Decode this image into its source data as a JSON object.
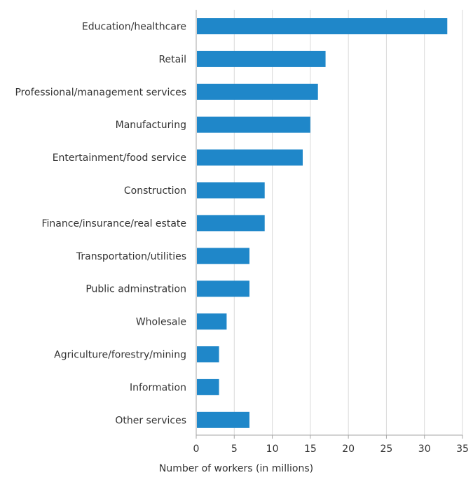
{
  "chart_data": {
    "type": "bar",
    "orientation": "horizontal",
    "title": "",
    "xlabel": "Number of workers (in millions)",
    "ylabel": "",
    "categories": [
      "Education/healthcare",
      "Retail",
      "Professional/management services",
      "Manufacturing",
      "Entertainment/food service",
      "Construction",
      "Finance/insurance/real estate",
      "Transportation/utilities",
      "Public adminstration",
      "Wholesale",
      "Agriculture/forestry/mining",
      "Information",
      "Other services"
    ],
    "values": [
      33,
      17,
      16,
      15,
      14,
      9,
      9,
      7,
      7,
      4,
      3,
      3,
      7
    ],
    "xlim": [
      0,
      35
    ],
    "xticks": [
      0,
      5,
      10,
      15,
      20,
      25,
      30,
      35
    ],
    "grid": true,
    "bar_color": "#1f87c9",
    "grid_color": "#d9d9d9",
    "axis_color": "#a6a6a6"
  }
}
